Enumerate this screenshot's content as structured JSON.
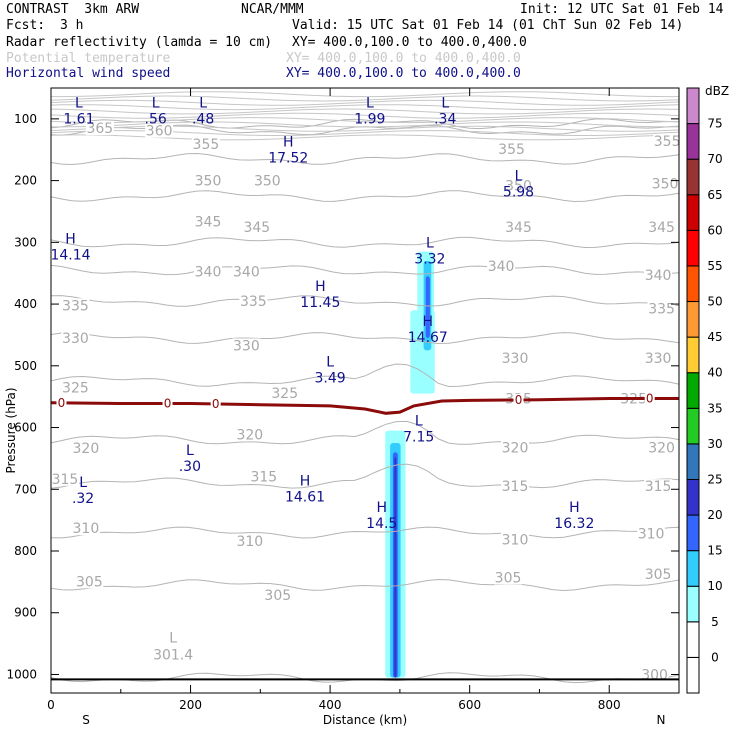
{
  "header": {
    "model": "CONTRAST  3km ARW",
    "org": "NCAR/MMM",
    "init": "Init: 12 UTC Sat 01 Feb 14",
    "fcst_label": "Fcst:",
    "fcst_value": "3 h",
    "valid": "Valid: 15 UTC Sat 01 Feb 14 (01 ChT Sun 02 Feb 14)",
    "fields": [
      {
        "name": "Radar reflectivity (lamda = 10 cm)",
        "xy": "XY= 400.0,100.0 to 400.0,400.0",
        "color": "#000000"
      },
      {
        "name": "Potential temperature",
        "xy": "XY= 400.0,100.0 to 400.0,400.0",
        "color": "#c8c8c8"
      },
      {
        "name": "Horizontal wind speed",
        "xy": "XY= 400.0,100.0 to 400.0,400.0",
        "color": "#10108a"
      }
    ]
  },
  "chart_data": {
    "type": "cross-section",
    "xlabel": "Distance (km)",
    "ylabel": "Pressure (hPa)",
    "xlim": [
      0,
      900
    ],
    "ylim": [
      1030,
      50
    ],
    "x_ticks": [
      0,
      200,
      400,
      600,
      800
    ],
    "y_ticks": [
      100,
      200,
      300,
      400,
      500,
      600,
      700,
      800,
      900,
      1000
    ],
    "x_end_labels": {
      "left": "S",
      "right": "N"
    },
    "colorbar": {
      "unit": "dBZ",
      "levels": [
        0,
        5,
        10,
        15,
        20,
        25,
        30,
        35,
        40,
        45,
        50,
        55,
        60,
        65,
        70,
        75
      ],
      "colors": [
        "#ffffff",
        "#99ffff",
        "#33ccff",
        "#3366ff",
        "#3333cc",
        "#3377bb",
        "#22cc22",
        "#00aa00",
        "#ffcc33",
        "#ff9933",
        "#ff5500",
        "#ff0000",
        "#cc0000",
        "#993333",
        "#993399",
        "#cc88cc"
      ]
    },
    "theta_contours": [
      {
        "value": 300,
        "p": 1005
      },
      {
        "value": 305,
        "p": 855
      },
      {
        "value": 310,
        "p": 770
      },
      {
        "value": 315,
        "p": 690
      },
      {
        "value": 320,
        "p": 620
      },
      {
        "value": 325,
        "p": 525
      },
      {
        "value": 330,
        "p": 455
      },
      {
        "value": 335,
        "p": 395
      },
      {
        "value": 340,
        "p": 345
      },
      {
        "value": 345,
        "p": 300
      },
      {
        "value": 350,
        "p": 225
      },
      {
        "value": 355,
        "p": 165
      },
      {
        "value": 360,
        "p": 118
      },
      {
        "value": 365,
        "p": 108
      }
    ],
    "theta_labels": [
      {
        "text": "365",
        "x": 70,
        "p": 115
      },
      {
        "text": "360",
        "x": 155,
        "p": 119
      },
      {
        "text": "355",
        "x": 222,
        "p": 141
      },
      {
        "text": "355",
        "x": 660,
        "p": 149
      },
      {
        "text": "355",
        "x": 883,
        "p": 136
      },
      {
        "text": "350",
        "x": 225,
        "p": 200
      },
      {
        "text": "350",
        "x": 310,
        "p": 200
      },
      {
        "text": "350",
        "x": 670,
        "p": 208
      },
      {
        "text": "350",
        "x": 880,
        "p": 205
      },
      {
        "text": "345",
        "x": 225,
        "p": 266
      },
      {
        "text": "345",
        "x": 295,
        "p": 275
      },
      {
        "text": "345",
        "x": 670,
        "p": 275
      },
      {
        "text": "345",
        "x": 875,
        "p": 275
      },
      {
        "text": "340",
        "x": 225,
        "p": 347
      },
      {
        "text": "340",
        "x": 280,
        "p": 347
      },
      {
        "text": "340",
        "x": 645,
        "p": 338
      },
      {
        "text": "340",
        "x": 870,
        "p": 353
      },
      {
        "text": "335",
        "x": 35,
        "p": 402
      },
      {
        "text": "335",
        "x": 290,
        "p": 395
      },
      {
        "text": "335",
        "x": 875,
        "p": 407
      },
      {
        "text": "330",
        "x": 35,
        "p": 455
      },
      {
        "text": "330",
        "x": 280,
        "p": 467
      },
      {
        "text": "330",
        "x": 665,
        "p": 487
      },
      {
        "text": "330",
        "x": 870,
        "p": 487
      },
      {
        "text": "325",
        "x": 35,
        "p": 535
      },
      {
        "text": "325",
        "x": 335,
        "p": 544
      },
      {
        "text": "325",
        "x": 670,
        "p": 553
      },
      {
        "text": "325",
        "x": 835,
        "p": 553
      },
      {
        "text": "320",
        "x": 50,
        "p": 633
      },
      {
        "text": "320",
        "x": 285,
        "p": 611
      },
      {
        "text": "320",
        "x": 665,
        "p": 632
      },
      {
        "text": "320",
        "x": 875,
        "p": 632
      },
      {
        "text": "315",
        "x": 20,
        "p": 683
      },
      {
        "text": "315",
        "x": 305,
        "p": 679
      },
      {
        "text": "315",
        "x": 665,
        "p": 695
      },
      {
        "text": "315",
        "x": 870,
        "p": 695
      },
      {
        "text": "310",
        "x": 50,
        "p": 763
      },
      {
        "text": "310",
        "x": 285,
        "p": 784
      },
      {
        "text": "310",
        "x": 665,
        "p": 781
      },
      {
        "text": "310",
        "x": 860,
        "p": 772
      },
      {
        "text": "305",
        "x": 55,
        "p": 849
      },
      {
        "text": "305",
        "x": 325,
        "p": 871
      },
      {
        "text": "305",
        "x": 655,
        "p": 843
      },
      {
        "text": "305",
        "x": 870,
        "p": 837
      },
      {
        "text": "300",
        "x": 865,
        "p": 1000
      }
    ],
    "theta_extremes": [
      {
        "type": "L",
        "value": "301.4",
        "x": 175,
        "p": 955
      }
    ],
    "zero_line": {
      "label": "0",
      "label_x": [
        15,
        167,
        236,
        670,
        858
      ],
      "points": [
        [
          0,
          560
        ],
        [
          100,
          561
        ],
        [
          200,
          561
        ],
        [
          300,
          563
        ],
        [
          400,
          565
        ],
        [
          450,
          570
        ],
        [
          480,
          577
        ],
        [
          500,
          575
        ],
        [
          520,
          565
        ],
        [
          560,
          557
        ],
        [
          600,
          556
        ],
        [
          700,
          555
        ],
        [
          800,
          553
        ],
        [
          900,
          553
        ]
      ]
    },
    "wind_extremes": [
      {
        "type": "L",
        "value": "1.61",
        "x": 40,
        "p": 75
      },
      {
        "type": "L",
        "value": ".56",
        "x": 150,
        "p": 75
      },
      {
        "type": "L",
        "value": ".48",
        "x": 218,
        "p": 75
      },
      {
        "type": "L",
        "value": "1.99",
        "x": 457,
        "p": 75
      },
      {
        "type": "L",
        "value": ".34",
        "x": 565,
        "p": 75
      },
      {
        "type": "H",
        "value": "17.52",
        "x": 340,
        "p": 138
      },
      {
        "type": "L",
        "value": "5.98",
        "x": 670,
        "p": 193
      },
      {
        "type": "H",
        "value": "14.14",
        "x": 28,
        "p": 295
      },
      {
        "type": "L",
        "value": "3.32",
        "x": 543,
        "p": 302
      },
      {
        "type": "H",
        "value": "11.45",
        "x": 386,
        "p": 372
      },
      {
        "type": "H",
        "value": "14.67",
        "x": 540,
        "p": 429
      },
      {
        "type": "L",
        "value": "3.49",
        "x": 400,
        "p": 495
      },
      {
        "type": "L",
        "value": "7.15",
        "x": 527,
        "p": 590
      },
      {
        "type": "L",
        "value": ".30",
        "x": 199,
        "p": 638
      },
      {
        "type": "L",
        "value": ".32",
        "x": 46,
        "p": 690
      },
      {
        "type": "H",
        "value": "14.61",
        "x": 364,
        "p": 687
      },
      {
        "type": "H",
        "value": "14.5",
        "x": 474,
        "p": 730
      },
      {
        "type": "H",
        "value": "16.32",
        "x": 750,
        "p": 730
      }
    ],
    "reflectivity_cells": [
      {
        "x0": 479,
        "x1": 508,
        "p0": 605,
        "p1": 1005,
        "dbz": 5
      },
      {
        "x0": 486,
        "x1": 501,
        "p0": 625,
        "p1": 1005,
        "dbz": 10
      },
      {
        "x0": 490,
        "x1": 497,
        "p0": 640,
        "p1": 1005,
        "dbz": 15
      },
      {
        "x0": 492,
        "x1": 495,
        "p0": 648,
        "p1": 1005,
        "dbz": 20
      },
      {
        "x0": 515,
        "x1": 550,
        "p0": 410,
        "p1": 545,
        "dbz": 5
      },
      {
        "x0": 525,
        "x1": 549,
        "p0": 315,
        "p1": 490,
        "dbz": 5
      },
      {
        "x0": 534,
        "x1": 545,
        "p0": 330,
        "p1": 475,
        "dbz": 10
      },
      {
        "x0": 537,
        "x1": 543,
        "p0": 355,
        "p1": 455,
        "dbz": 15
      }
    ],
    "ground": {
      "p": 1008
    }
  }
}
